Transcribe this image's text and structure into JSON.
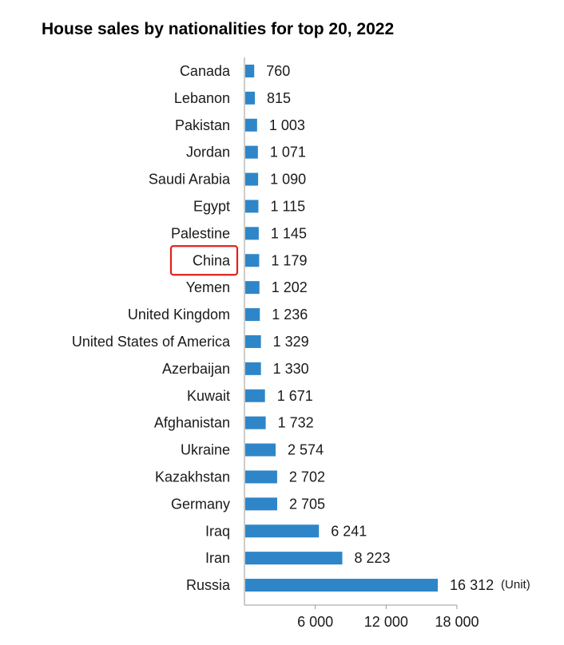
{
  "colors": {
    "bar": "#2E86C8",
    "highlight_box": "#E0201A"
  },
  "highlighted_category": "China",
  "chart_data": {
    "type": "bar",
    "orientation": "horizontal",
    "title": "House sales by nationalities for top 20, 2022",
    "unit": "(Unit)",
    "categories": [
      "Canada",
      "Lebanon",
      "Pakistan",
      "Jordan",
      "Saudi Arabia",
      "Egypt",
      "Palestine",
      "China",
      "Yemen",
      "United Kingdom",
      "United States of America",
      "Azerbaijan",
      "Kuwait",
      "Afghanistan",
      "Ukraine",
      "Kazakhstan",
      "Germany",
      "Iraq",
      "Iran",
      "Russia"
    ],
    "values": [
      760,
      815,
      1003,
      1071,
      1090,
      1115,
      1145,
      1179,
      1202,
      1236,
      1329,
      1330,
      1671,
      1732,
      2574,
      2702,
      2705,
      6241,
      8223,
      16312
    ],
    "value_labels": [
      "760",
      "815",
      "1 003",
      "1 071",
      "1 090",
      "1 115",
      "1 145",
      "1 179",
      "1 202",
      "1 236",
      "1 329",
      "1 330",
      "1 671",
      "1 732",
      "2 574",
      "2 702",
      "2 705",
      "6 241",
      "8 223",
      "16 312"
    ],
    "xlim": [
      0,
      18000
    ],
    "xticks": [
      6000,
      12000,
      18000
    ],
    "xtick_labels": [
      "6 000",
      "12 000",
      "18 000"
    ],
    "grid": false,
    "legend": "none"
  }
}
